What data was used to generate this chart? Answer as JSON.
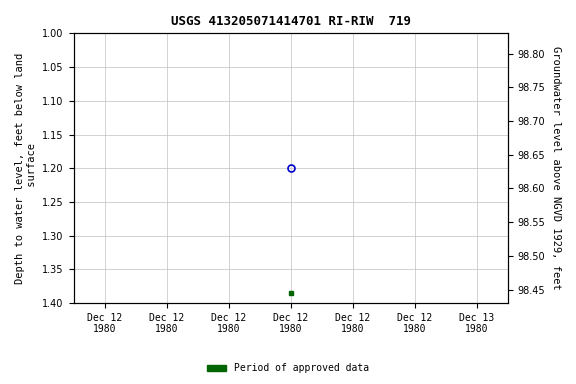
{
  "title": "USGS 413205071414701 RI-RIW  719",
  "ylabel_left": "Depth to water level, feet below land\n surface",
  "ylabel_right": "Groundwater level above NGVD 1929, feet",
  "ylim_left": [
    1.4,
    1.0
  ],
  "ylim_right": [
    98.43,
    98.83
  ],
  "yticks_left": [
    1.0,
    1.05,
    1.1,
    1.15,
    1.2,
    1.25,
    1.3,
    1.35,
    1.4
  ],
  "yticks_right": [
    98.8,
    98.75,
    98.7,
    98.65,
    98.6,
    98.55,
    98.5,
    98.45
  ],
  "xtick_labels": [
    "Dec 12\n1980",
    "Dec 12\n1980",
    "Dec 12\n1980",
    "Dec 12\n1980",
    "Dec 12\n1980",
    "Dec 12\n1980",
    "Dec 13\n1980"
  ],
  "xlim": [
    0,
    6
  ],
  "xtick_positions": [
    0,
    1,
    2,
    3,
    4,
    5,
    6
  ],
  "point_open_x": 3,
  "point_open_y": 1.2,
  "point_open_color": "#0000cc",
  "point_filled_x": 3,
  "point_filled_y": 1.385,
  "point_filled_color": "#006400",
  "legend_label": "Period of approved data",
  "legend_color": "#006400",
  "grid_color": "#c0c0c0",
  "bg_color": "#ffffff",
  "title_fontsize": 9,
  "tick_fontsize": 7,
  "label_fontsize": 7.5
}
